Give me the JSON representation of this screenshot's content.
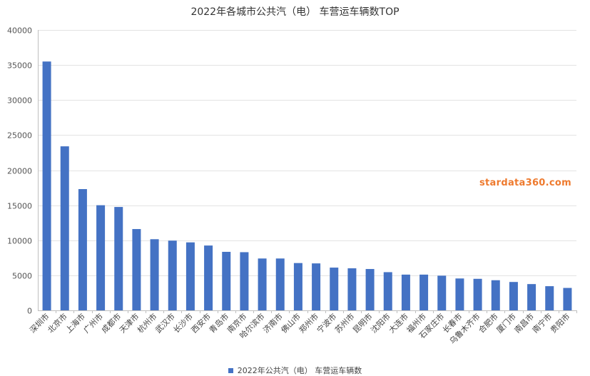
{
  "chart_data": {
    "type": "bar",
    "title": "2022年各城市公共汽（电） 车营运车辆数TOP",
    "categories": [
      "深圳市",
      "北京市",
      "上海市",
      "广州市",
      "成都市",
      "天津市",
      "杭州市",
      "武汉市",
      "长沙市",
      "西安市",
      "青岛市",
      "南京市",
      "哈尔滨市",
      "济南市",
      "佛山市",
      "郑州市",
      "宁波市",
      "苏州市",
      "昆明市",
      "沈阳市",
      "大连市",
      "福州市",
      "石家庄市",
      "长春市",
      "乌鲁木齐市",
      "合肥市",
      "厦门市",
      "南昌市",
      "南宁市",
      "贵阳市"
    ],
    "series": [
      {
        "name": "2022年公共汽（电） 车营运车辆数",
        "values": [
          35500,
          23400,
          17300,
          15000,
          14750,
          11600,
          10150,
          9950,
          9700,
          9250,
          8350,
          8300,
          7400,
          7400,
          6750,
          6700,
          6100,
          6000,
          5900,
          5450,
          5100,
          5100,
          4950,
          4550,
          4500,
          4300,
          4050,
          3750,
          3450,
          3200
        ]
      }
    ],
    "ylim": [
      0,
      40000
    ],
    "yticks": [
      0,
      5000,
      10000,
      15000,
      20000,
      25000,
      30000,
      35000,
      40000
    ],
    "xlabel": "",
    "ylabel": "",
    "grid": true,
    "legend_position": "bottom",
    "bar_color": "#4472c4"
  },
  "watermark": "stardata360.com"
}
